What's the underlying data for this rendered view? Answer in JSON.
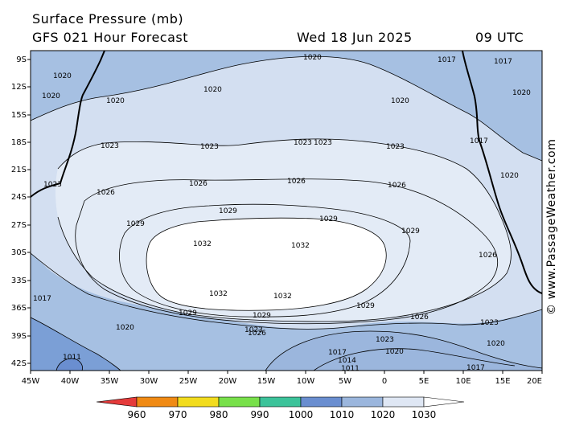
{
  "header": {
    "title": "Surface Pressure (mb)",
    "subtitle": "GFS 021 Hour Forecast",
    "date": "Wed 18 Jun 2025",
    "time": "09 UTC"
  },
  "credit": "© www.PassageWeather.com",
  "axes": {
    "lat_labels": [
      "9S",
      "12S",
      "15S",
      "18S",
      "21S",
      "24S",
      "27S",
      "30S",
      "33S",
      "36S",
      "39S",
      "42S"
    ],
    "lon_labels": [
      "45W",
      "40W",
      "35W",
      "30W",
      "25W",
      "20W",
      "15W",
      "10W",
      "5W",
      "0",
      "5E",
      "10E",
      "15E",
      "20E"
    ]
  },
  "contour_labels": {
    "high_center": "1032",
    "l1029": "1029",
    "l1026": "1026",
    "l1023": "1023",
    "l1020": "1020",
    "l1017": "1017",
    "l1014": "1014",
    "l1011": "1011"
  },
  "colorbar": {
    "values": [
      "960",
      "970",
      "980",
      "990",
      "1000",
      "1010",
      "1020",
      "1030"
    ],
    "colors": [
      "#e53b3b",
      "#f08a14",
      "#f2dc1e",
      "#78e04a",
      "#3cc39a",
      "#6a8ed0",
      "#9bb6dd",
      "#dfe7f4"
    ]
  },
  "colors": {
    "land": "#a6c0e2",
    "p1020": "#d3dff1",
    "p1023": "#e3ebf6",
    "p1032": "#ffffff",
    "low_blue": "#7b9fd6"
  }
}
